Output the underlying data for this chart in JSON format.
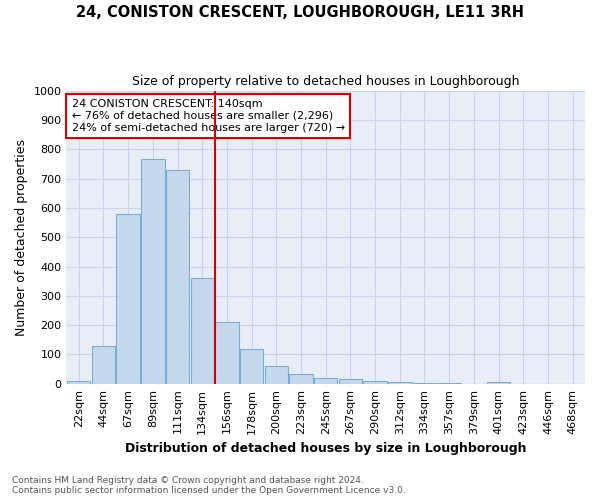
{
  "title": "24, CONISTON CRESCENT, LOUGHBOROUGH, LE11 3RH",
  "subtitle": "Size of property relative to detached houses in Loughborough",
  "xlabel": "Distribution of detached houses by size in Loughborough",
  "ylabel": "Number of detached properties",
  "bar_labels": [
    "22sqm",
    "44sqm",
    "67sqm",
    "89sqm",
    "111sqm",
    "134sqm",
    "156sqm",
    "178sqm",
    "200sqm",
    "223sqm",
    "245sqm",
    "267sqm",
    "290sqm",
    "312sqm",
    "334sqm",
    "357sqm",
    "379sqm",
    "401sqm",
    "423sqm",
    "446sqm",
    "468sqm"
  ],
  "bar_values": [
    10,
    128,
    578,
    765,
    730,
    360,
    210,
    120,
    62,
    35,
    20,
    17,
    10,
    6,
    3,
    2,
    0,
    5,
    0,
    0,
    0
  ],
  "bar_color": "#c5d8ed",
  "bar_edge_color": "#7aafd4",
  "vline_x": 5.5,
  "vline_color": "#cc0000",
  "annotation_text": "24 CONISTON CRESCENT: 140sqm\n← 76% of detached houses are smaller (2,296)\n24% of semi-detached houses are larger (720) →",
  "annotation_box_color": "white",
  "annotation_box_edge_color": "#cc0000",
  "ylim": [
    0,
    1000
  ],
  "yticks": [
    0,
    100,
    200,
    300,
    400,
    500,
    600,
    700,
    800,
    900,
    1000
  ],
  "footnote1": "Contains HM Land Registry data © Crown copyright and database right 2024.",
  "footnote2": "Contains public sector information licensed under the Open Government Licence v3.0.",
  "background_color": "#e8eef8",
  "grid_color": "#c8d4e8",
  "title_fontsize": 10.5,
  "subtitle_fontsize": 9,
  "axis_label_fontsize": 9,
  "tick_fontsize": 8,
  "footnote_fontsize": 6.5
}
